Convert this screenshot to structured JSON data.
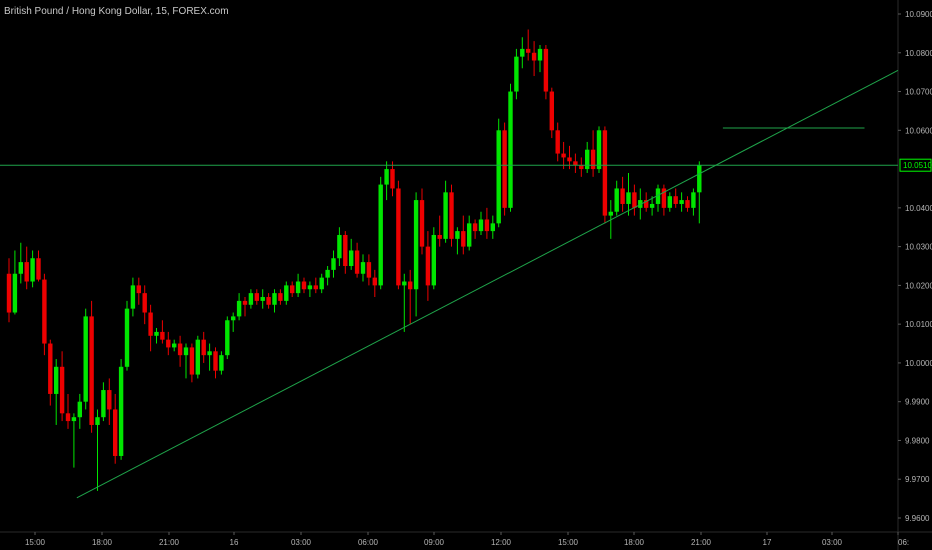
{
  "header": {
    "title": "British Pound / Hong Kong Dollar, 15, FOREX.com"
  },
  "colors": {
    "background": "#000000",
    "up": "#00e600",
    "down": "#ee0000",
    "line": "#1fa34a",
    "axis_text": "#b4b4b4",
    "price_tag": "#00ff00"
  },
  "chart_data": {
    "type": "candlestick",
    "symbol": "British Pound / Hong Kong Dollar",
    "interval": "15",
    "source": "FOREX.com",
    "y_ticks": [
      "10.0900",
      "10.0800",
      "10.0700",
      "10.0600",
      "10.0510",
      "10.0400",
      "10.0300",
      "10.0200",
      "10.0100",
      "10.0000",
      "9.9900",
      "9.9800",
      "9.9700",
      "9.9600"
    ],
    "ylim": [
      9.958,
      10.094
    ],
    "current_price": "10.0510",
    "x_ticks": [
      "15:00",
      "18:00",
      "21:00",
      "16",
      "03:00",
      "06:00",
      "09:00",
      "12:00",
      "15:00",
      "18:00",
      "21:00",
      "17",
      "03:00",
      "06:"
    ],
    "trendline": {
      "start": {
        "bar": 11.5,
        "price": 9.9652
      },
      "end": {
        "bar": 128.0,
        "price": 10.0575
      }
    },
    "level_line": {
      "price": 10.0606
    },
    "candles": [
      [
        10.023,
        10.027,
        10.0105,
        10.013
      ],
      [
        10.013,
        10.029,
        10.0125,
        10.023
      ],
      [
        10.023,
        10.031,
        10.0205,
        10.026
      ],
      [
        10.026,
        10.03,
        10.019,
        10.021
      ],
      [
        10.021,
        10.029,
        10.0195,
        10.027
      ],
      [
        10.027,
        10.029,
        10.021,
        10.0215
      ],
      [
        10.0215,
        10.023,
        10.002,
        10.005
      ],
      [
        10.005,
        10.006,
        9.989,
        9.992
      ],
      [
        9.992,
        10.001,
        9.984,
        9.999
      ],
      [
        9.999,
        10.003,
        9.985,
        9.987
      ],
      [
        9.987,
        9.992,
        9.983,
        9.985
      ],
      [
        9.985,
        9.987,
        9.973,
        9.986
      ],
      [
        9.986,
        9.992,
        9.983,
        9.99
      ],
      [
        9.99,
        10.014,
        9.988,
        10.012
      ],
      [
        10.012,
        10.016,
        9.982,
        9.984
      ],
      [
        9.984,
        9.988,
        9.967,
        9.986
      ],
      [
        9.986,
        9.995,
        9.985,
        9.993
      ],
      [
        9.993,
        9.996,
        9.984,
        9.988
      ],
      [
        9.988,
        9.992,
        9.974,
        9.976
      ],
      [
        9.976,
        10.001,
        9.975,
        9.999
      ],
      [
        9.999,
        10.016,
        9.998,
        10.014
      ],
      [
        10.014,
        10.022,
        10.012,
        10.02
      ],
      [
        10.02,
        10.022,
        10.015,
        10.018
      ],
      [
        10.018,
        10.02,
        10.01,
        10.013
      ],
      [
        10.013,
        10.015,
        10.003,
        10.007
      ],
      [
        10.007,
        10.009,
        10.005,
        10.008
      ],
      [
        10.008,
        10.011,
        10.005,
        10.006
      ],
      [
        10.006,
        10.008,
        10.002,
        10.004
      ],
      [
        10.004,
        10.006,
        10.003,
        10.005
      ],
      [
        10.005,
        10.007,
        9.999,
        10.002
      ],
      [
        10.002,
        10.005,
        9.996,
        10.004
      ],
      [
        10.004,
        10.005,
        9.995,
        9.997
      ],
      [
        9.997,
        10.007,
        9.996,
        10.006
      ],
      [
        10.006,
        10.008,
        10.0,
        10.002
      ],
      [
        10.002,
        10.005,
        9.998,
        10.003
      ],
      [
        10.003,
        10.004,
        9.996,
        9.998
      ],
      [
        9.998,
        10.003,
        9.997,
        10.002
      ],
      [
        10.002,
        10.012,
        10.001,
        10.011
      ],
      [
        10.011,
        10.013,
        10.008,
        10.012
      ],
      [
        10.012,
        10.018,
        10.011,
        10.016
      ],
      [
        10.016,
        10.017,
        10.012,
        10.015
      ],
      [
        10.015,
        10.019,
        10.014,
        10.018
      ],
      [
        10.018,
        10.019,
        10.015,
        10.016
      ],
      [
        10.016,
        10.019,
        10.014,
        10.017
      ],
      [
        10.017,
        10.018,
        10.014,
        10.015
      ],
      [
        10.015,
        10.019,
        10.013,
        10.018
      ],
      [
        10.018,
        10.019,
        10.015,
        10.016
      ],
      [
        10.016,
        10.021,
        10.015,
        10.02
      ],
      [
        10.02,
        10.021,
        10.017,
        10.018
      ],
      [
        10.018,
        10.023,
        10.017,
        10.021
      ],
      [
        10.021,
        10.022,
        10.018,
        10.019
      ],
      [
        10.019,
        10.021,
        10.017,
        10.02
      ],
      [
        10.02,
        10.022,
        10.018,
        10.019
      ],
      [
        10.019,
        10.023,
        10.018,
        10.022
      ],
      [
        10.022,
        10.025,
        10.02,
        10.024
      ],
      [
        10.024,
        10.029,
        10.022,
        10.027
      ],
      [
        10.027,
        10.035,
        10.025,
        10.033
      ],
      [
        10.033,
        10.034,
        10.023,
        10.025
      ],
      [
        10.025,
        10.032,
        10.024,
        10.029
      ],
      [
        10.029,
        10.031,
        10.022,
        10.023
      ],
      [
        10.023,
        10.028,
        10.021,
        10.026
      ],
      [
        10.026,
        10.028,
        10.02,
        10.022
      ],
      [
        10.022,
        10.024,
        10.017,
        10.02
      ],
      [
        10.02,
        10.048,
        10.019,
        10.046
      ],
      [
        10.046,
        10.052,
        10.042,
        10.05
      ],
      [
        10.05,
        10.052,
        10.043,
        10.045
      ],
      [
        10.045,
        10.047,
        10.019,
        10.02
      ],
      [
        10.02,
        10.023,
        10.008,
        10.021
      ],
      [
        10.021,
        10.024,
        10.01,
        10.019
      ],
      [
        10.019,
        10.044,
        10.012,
        10.042
      ],
      [
        10.042,
        10.045,
        10.028,
        10.03
      ],
      [
        10.03,
        10.034,
        10.016,
        10.02
      ],
      [
        10.02,
        10.035,
        10.019,
        10.033
      ],
      [
        10.033,
        10.038,
        10.03,
        10.032
      ],
      [
        10.032,
        10.047,
        10.031,
        10.044
      ],
      [
        10.044,
        10.046,
        10.03,
        10.032
      ],
      [
        10.032,
        10.035,
        10.028,
        10.034
      ],
      [
        10.034,
        10.038,
        10.028,
        10.03
      ],
      [
        10.03,
        10.038,
        10.029,
        10.036
      ],
      [
        10.036,
        10.037,
        10.032,
        10.034
      ],
      [
        10.034,
        10.039,
        10.033,
        10.037
      ],
      [
        10.037,
        10.04,
        10.032,
        10.034
      ],
      [
        10.034,
        10.038,
        10.032,
        10.036
      ],
      [
        10.036,
        10.063,
        10.035,
        10.06
      ],
      [
        10.06,
        10.062,
        10.038,
        10.04
      ],
      [
        10.04,
        10.072,
        10.039,
        10.07
      ],
      [
        10.07,
        10.081,
        10.068,
        10.079
      ],
      [
        10.079,
        10.084,
        10.076,
        10.081
      ],
      [
        10.081,
        10.086,
        10.078,
        10.08
      ],
      [
        10.08,
        10.083,
        10.074,
        10.078
      ],
      [
        10.078,
        10.082,
        10.075,
        10.081
      ],
      [
        10.081,
        10.082,
        10.068,
        10.07
      ],
      [
        10.07,
        10.071,
        10.058,
        10.06
      ],
      [
        10.06,
        10.062,
        10.052,
        10.054
      ],
      [
        10.054,
        10.057,
        10.05,
        10.053
      ],
      [
        10.053,
        10.056,
        10.05,
        10.052
      ],
      [
        10.052,
        10.054,
        10.049,
        10.051
      ],
      [
        10.051,
        10.053,
        10.048,
        10.05
      ],
      [
        10.05,
        10.057,
        10.049,
        10.055
      ],
      [
        10.055,
        10.06,
        10.048,
        10.05
      ],
      [
        10.05,
        10.061,
        10.049,
        10.06
      ],
      [
        10.06,
        10.061,
        10.036,
        10.038
      ],
      [
        10.038,
        10.042,
        10.032,
        10.039
      ],
      [
        10.039,
        10.047,
        10.038,
        10.045
      ],
      [
        10.045,
        10.048,
        10.039,
        10.041
      ],
      [
        10.041,
        10.049,
        10.038,
        10.044
      ],
      [
        10.044,
        10.046,
        10.038,
        10.04
      ],
      [
        10.04,
        10.045,
        10.037,
        10.042
      ],
      [
        10.042,
        10.044,
        10.039,
        10.04
      ],
      [
        10.04,
        10.043,
        10.038,
        10.041
      ],
      [
        10.041,
        10.046,
        10.039,
        10.045
      ],
      [
        10.045,
        10.046,
        10.038,
        10.04
      ],
      [
        10.04,
        10.044,
        10.039,
        10.043
      ],
      [
        10.043,
        10.045,
        10.04,
        10.041
      ],
      [
        10.041,
        10.044,
        10.039,
        10.042
      ],
      [
        10.042,
        10.043,
        10.039,
        10.04
      ],
      [
        10.04,
        10.045,
        10.038,
        10.044
      ],
      [
        10.044,
        10.052,
        10.036,
        10.051
      ]
    ]
  }
}
